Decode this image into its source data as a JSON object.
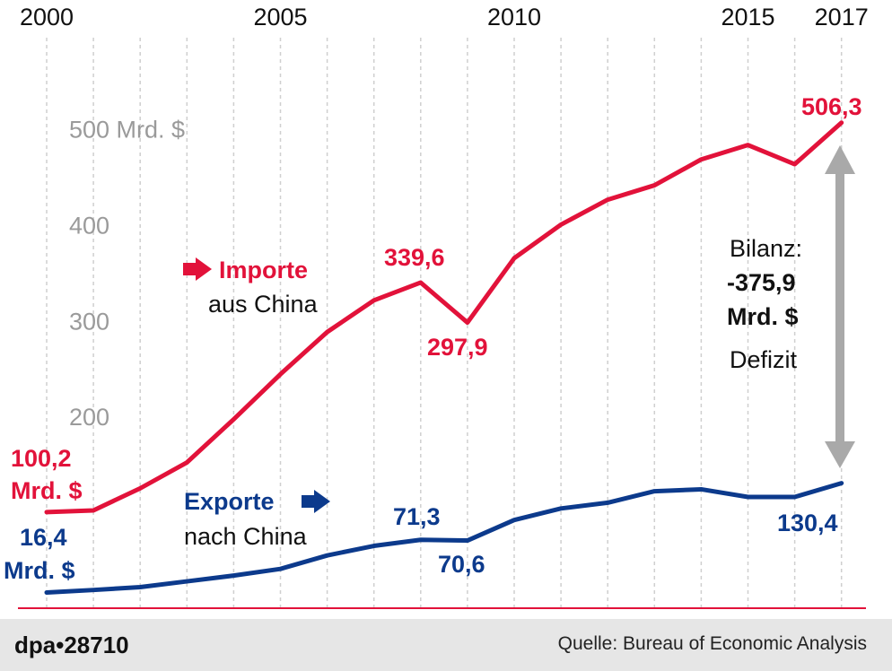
{
  "chart_data": {
    "type": "line",
    "x": [
      2000,
      2001,
      2002,
      2003,
      2004,
      2005,
      2006,
      2007,
      2008,
      2009,
      2010,
      2011,
      2012,
      2013,
      2014,
      2015,
      2016,
      2017
    ],
    "xtick_labels": [
      "2000",
      "2005",
      "2010",
      "2015",
      "2017"
    ],
    "ytick_labels": [
      "500 Mrd. $",
      "400",
      "300",
      "200"
    ],
    "ylim": [
      0,
      540
    ],
    "grid": "vertical",
    "series": [
      {
        "name": "Importe aus China",
        "color": "#e2123a",
        "values": [
          100.2,
          102,
          125,
          152,
          197,
          244,
          288,
          321,
          339.6,
          297.9,
          365,
          400,
          426,
          441,
          468,
          483,
          463,
          506.3
        ]
      },
      {
        "name": "Exporte nach China",
        "color": "#0c3a8c",
        "values": [
          16.4,
          19,
          22,
          28,
          34,
          41,
          55,
          65,
          71.3,
          70.6,
          92,
          104,
          110,
          122,
          124,
          116,
          116,
          130.4
        ]
      }
    ],
    "annotations": {
      "imports_start": [
        "100,2",
        "Mrd. $"
      ],
      "imports_2008": "339,6",
      "imports_2009": "297,9",
      "imports_end": "506,3",
      "exports_start": [
        "16,4",
        "Mrd. $"
      ],
      "exports_2008": "71,3",
      "exports_2009": "70,6",
      "exports_end": "130,4",
      "imports_legend": [
        "Importe",
        "aus China"
      ],
      "exports_legend": [
        "Exporte",
        "nach China"
      ],
      "balance": [
        "Bilanz:",
        "-375,9",
        "Mrd. $",
        "Defizit"
      ]
    }
  },
  "footer": {
    "credit": "dpa•28710",
    "source": "Quelle: Bureau of Economic Analysis"
  }
}
